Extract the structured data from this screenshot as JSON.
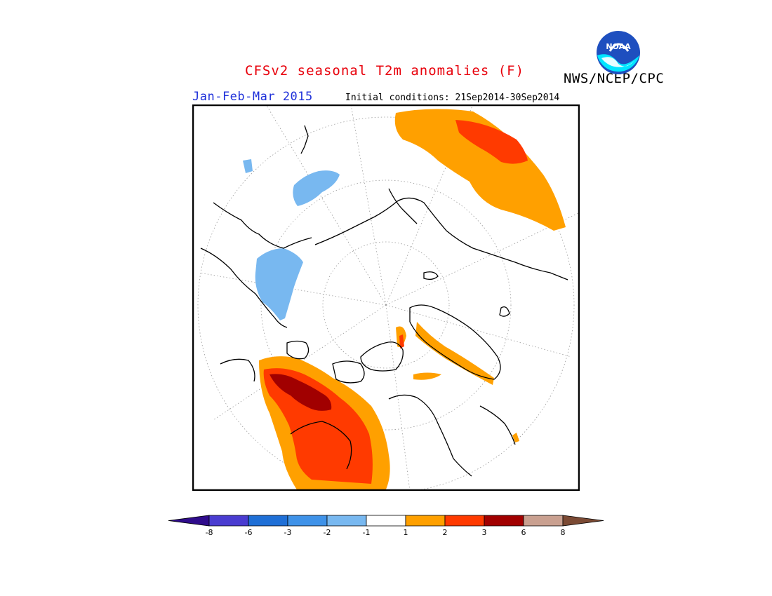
{
  "title": "CFSv2 seasonal T2m anomalies (F)",
  "organization": "NWS/NCEP/CPC",
  "logo_text": "NOAA",
  "season": "Jan-Feb-Mar 2015",
  "initial_conditions": "Initial conditions: 21Sep2014-30Sep2014",
  "colorbar": {
    "tick_labels": [
      "-8",
      "-6",
      "-3",
      "-2",
      "-1",
      "1",
      "2",
      "3",
      "6",
      "8"
    ],
    "colors": [
      "#2f0c8c",
      "#4a3cd0",
      "#1f6fd6",
      "#3f92e8",
      "#78b8f0",
      "#ffffff",
      "#ffa000",
      "#ff3a00",
      "#a10000",
      "#c9a090",
      "#7b4a34"
    ]
  },
  "anomaly_colors": {
    "neg1": "#78b8f0",
    "pos1": "#ffa000",
    "pos2": "#ff3a00",
    "pos3": "#a10000"
  }
}
